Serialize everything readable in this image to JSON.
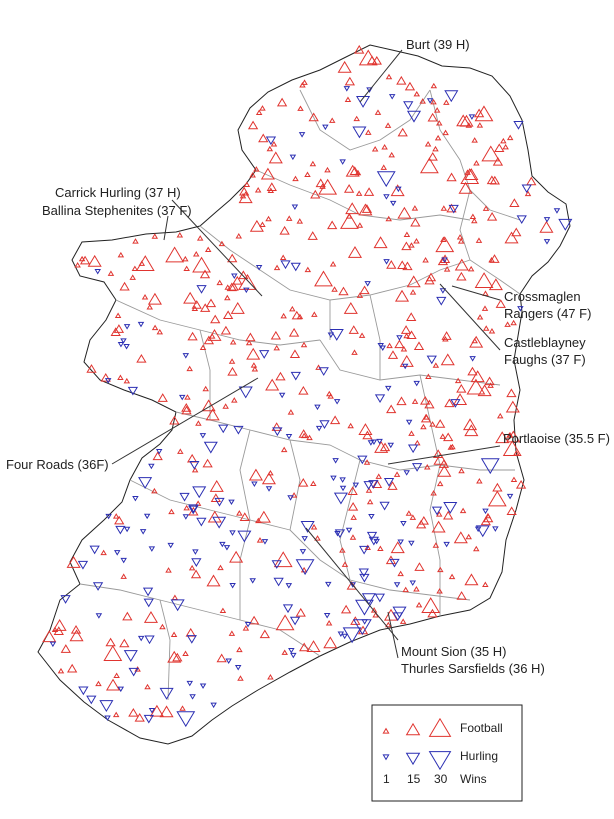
{
  "colors": {
    "football": "#e0342f",
    "hurling": "#2b2fb3",
    "border": "#222222",
    "county": "#9a9a9a"
  },
  "annotations": [
    {
      "id": "burt",
      "text": "Burt (39 H)"
    },
    {
      "id": "carrick",
      "text": "Carrick Hurling (37 H)"
    },
    {
      "id": "ballina",
      "text": "Ballina Stephenites (37 F)"
    },
    {
      "id": "crossmaglen",
      "lines": [
        "Crossmaglen",
        "Rangers (47 F)"
      ]
    },
    {
      "id": "castleblayney",
      "lines": [
        "Castleblayney",
        "Faughs (37 F)"
      ]
    },
    {
      "id": "portlaoise",
      "text": "Portlaoise (35.5 F)"
    },
    {
      "id": "fourroads",
      "text": "Four Roads (36F)"
    },
    {
      "id": "mountsion",
      "text": "Mount Sion (35 H)"
    },
    {
      "id": "thurles",
      "text": "Thurles Sarsfields (36 H)"
    }
  ],
  "legend": {
    "football_label": "Football",
    "hurling_label": "Hurling",
    "sizes": [
      "1",
      "15",
      "30"
    ],
    "size_values": [
      1,
      15,
      30
    ],
    "wins_label": "Wins"
  }
}
